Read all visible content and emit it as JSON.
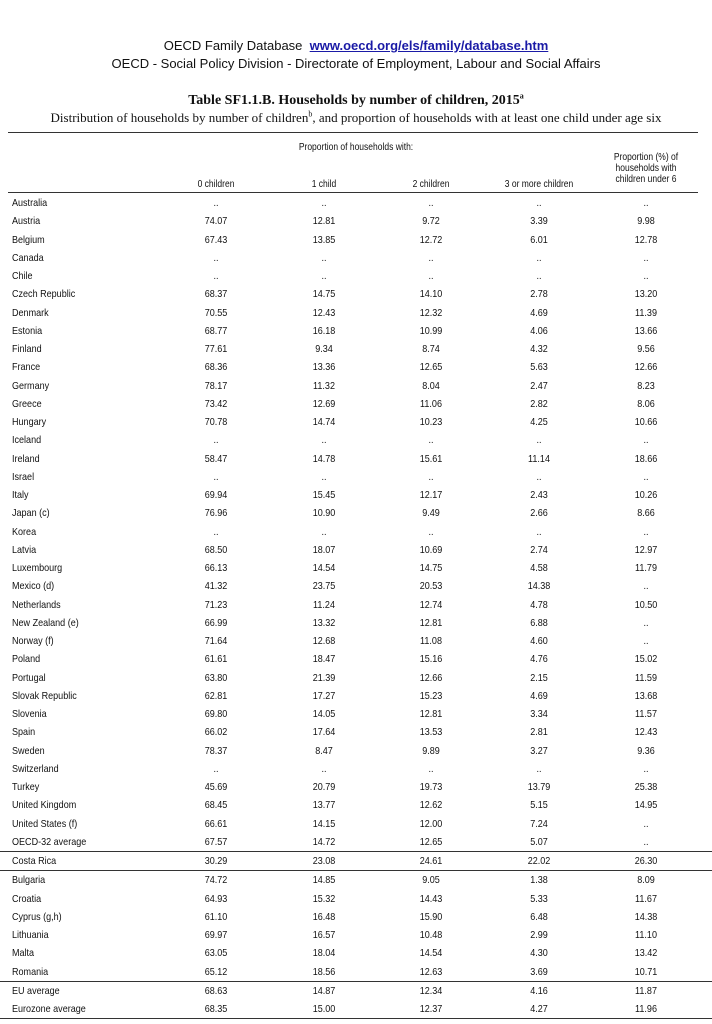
{
  "header": {
    "db_title": "OECD Family Database",
    "db_link": "www.oecd.org/els/family/database.htm",
    "division": "OECD - Social Policy Division - Directorate of Employment, Labour and Social Affairs"
  },
  "table": {
    "title": "Table SF1.1.B. Households by number of children, 2015",
    "title_note": "a",
    "subtitle_part1": "Distribution of households by number of children",
    "subtitle_note": "b",
    "subtitle_part2": ", and proportion of households with at least one child under age six",
    "group_header": "Proportion of households with:",
    "columns": [
      "0 children",
      "1 child",
      "2 children",
      "3 or more children"
    ],
    "under6_header": [
      "Proportion (%) of",
      "households with",
      "children under 6"
    ],
    "rows": [
      {
        "country": "Australia",
        "v": [
          "..",
          "..",
          "..",
          "..",
          ".."
        ]
      },
      {
        "country": "Austria",
        "v": [
          "74.07",
          "12.81",
          "9.72",
          "3.39",
          "9.98"
        ]
      },
      {
        "country": "Belgium",
        "v": [
          "67.43",
          "13.85",
          "12.72",
          "6.01",
          "12.78"
        ]
      },
      {
        "country": "Canada",
        "v": [
          "..",
          "..",
          "..",
          "..",
          ".."
        ]
      },
      {
        "country": "Chile",
        "v": [
          "..",
          "..",
          "..",
          "..",
          ".."
        ]
      },
      {
        "country": "Czech Republic",
        "v": [
          "68.37",
          "14.75",
          "14.10",
          "2.78",
          "13.20"
        ]
      },
      {
        "country": "Denmark",
        "v": [
          "70.55",
          "12.43",
          "12.32",
          "4.69",
          "11.39"
        ]
      },
      {
        "country": "Estonia",
        "v": [
          "68.77",
          "16.18",
          "10.99",
          "4.06",
          "13.66"
        ]
      },
      {
        "country": "Finland",
        "v": [
          "77.61",
          "9.34",
          "8.74",
          "4.32",
          "9.56"
        ]
      },
      {
        "country": "France",
        "v": [
          "68.36",
          "13.36",
          "12.65",
          "5.63",
          "12.66"
        ]
      },
      {
        "country": "Germany",
        "v": [
          "78.17",
          "11.32",
          "8.04",
          "2.47",
          "8.23"
        ]
      },
      {
        "country": "Greece",
        "v": [
          "73.42",
          "12.69",
          "11.06",
          "2.82",
          "8.06"
        ]
      },
      {
        "country": "Hungary",
        "v": [
          "70.78",
          "14.74",
          "10.23",
          "4.25",
          "10.66"
        ]
      },
      {
        "country": "Iceland",
        "v": [
          "..",
          "..",
          "..",
          "..",
          ".."
        ]
      },
      {
        "country": "Ireland",
        "v": [
          "58.47",
          "14.78",
          "15.61",
          "11.14",
          "18.66"
        ]
      },
      {
        "country": "Israel",
        "v": [
          "..",
          "..",
          "..",
          "..",
          ".."
        ]
      },
      {
        "country": "Italy",
        "v": [
          "69.94",
          "15.45",
          "12.17",
          "2.43",
          "10.26"
        ]
      },
      {
        "country": "Japan (c)",
        "v": [
          "76.96",
          "10.90",
          "9.49",
          "2.66",
          "8.66"
        ]
      },
      {
        "country": "Korea",
        "v": [
          "..",
          "..",
          "..",
          "..",
          ".."
        ]
      },
      {
        "country": "Latvia",
        "v": [
          "68.50",
          "18.07",
          "10.69",
          "2.74",
          "12.97"
        ]
      },
      {
        "country": "Luxembourg",
        "v": [
          "66.13",
          "14.54",
          "14.75",
          "4.58",
          "11.79"
        ]
      },
      {
        "country": "Mexico (d)",
        "v": [
          "41.32",
          "23.75",
          "20.53",
          "14.38",
          ".."
        ]
      },
      {
        "country": "Netherlands",
        "v": [
          "71.23",
          "11.24",
          "12.74",
          "4.78",
          "10.50"
        ]
      },
      {
        "country": "New Zealand (e)",
        "v": [
          "66.99",
          "13.32",
          "12.81",
          "6.88",
          ".."
        ]
      },
      {
        "country": "Norway (f)",
        "v": [
          "71.64",
          "12.68",
          "11.08",
          "4.60",
          ".."
        ]
      },
      {
        "country": "Poland",
        "v": [
          "61.61",
          "18.47",
          "15.16",
          "4.76",
          "15.02"
        ]
      },
      {
        "country": "Portugal",
        "v": [
          "63.80",
          "21.39",
          "12.66",
          "2.15",
          "11.59"
        ]
      },
      {
        "country": "Slovak Republic",
        "v": [
          "62.81",
          "17.27",
          "15.23",
          "4.69",
          "13.68"
        ]
      },
      {
        "country": "Slovenia",
        "v": [
          "69.80",
          "14.05",
          "12.81",
          "3.34",
          "11.57"
        ]
      },
      {
        "country": "Spain",
        "v": [
          "66.02",
          "17.64",
          "13.53",
          "2.81",
          "12.43"
        ]
      },
      {
        "country": "Sweden",
        "v": [
          "78.37",
          "8.47",
          "9.89",
          "3.27",
          "9.36"
        ]
      },
      {
        "country": "Switzerland",
        "v": [
          "..",
          "..",
          "..",
          "..",
          ".."
        ]
      },
      {
        "country": "Turkey",
        "v": [
          "45.69",
          "20.79",
          "19.73",
          "13.79",
          "25.38"
        ]
      },
      {
        "country": "United Kingdom",
        "v": [
          "68.45",
          "13.77",
          "12.62",
          "5.15",
          "14.95"
        ]
      },
      {
        "country": "United States (f)",
        "v": [
          "66.61",
          "14.15",
          "12.00",
          "7.24",
          ".."
        ]
      },
      {
        "country": "OECD-32 average",
        "v": [
          "67.57",
          "14.72",
          "12.65",
          "5.07",
          ".."
        ],
        "sep": true
      },
      {
        "country": "Costa Rica",
        "v": [
          "30.29",
          "23.08",
          "24.61",
          "22.02",
          "26.30"
        ],
        "sep": true
      },
      {
        "country": "Bulgaria",
        "v": [
          "74.72",
          "14.85",
          "9.05",
          "1.38",
          "8.09"
        ]
      },
      {
        "country": "Croatia",
        "v": [
          "64.93",
          "15.32",
          "14.43",
          "5.33",
          "11.67"
        ]
      },
      {
        "country": "Cyprus (g,h)",
        "v": [
          "61.10",
          "16.48",
          "15.90",
          "6.48",
          "14.38"
        ]
      },
      {
        "country": "Lithuania",
        "v": [
          "69.97",
          "16.57",
          "10.48",
          "2.99",
          "11.10"
        ]
      },
      {
        "country": "Malta",
        "v": [
          "63.05",
          "18.04",
          "14.54",
          "4.30",
          "13.42"
        ]
      },
      {
        "country": "Romania",
        "v": [
          "65.12",
          "18.56",
          "12.63",
          "3.69",
          "10.71"
        ],
        "sep": true
      },
      {
        "country": "EU average",
        "v": [
          "68.63",
          "14.87",
          "12.34",
          "4.16",
          "11.87"
        ]
      },
      {
        "country": "Eurozone average",
        "v": [
          "68.35",
          "15.00",
          "12.37",
          "4.27",
          "11.96"
        ],
        "sep": true
      }
    ]
  }
}
